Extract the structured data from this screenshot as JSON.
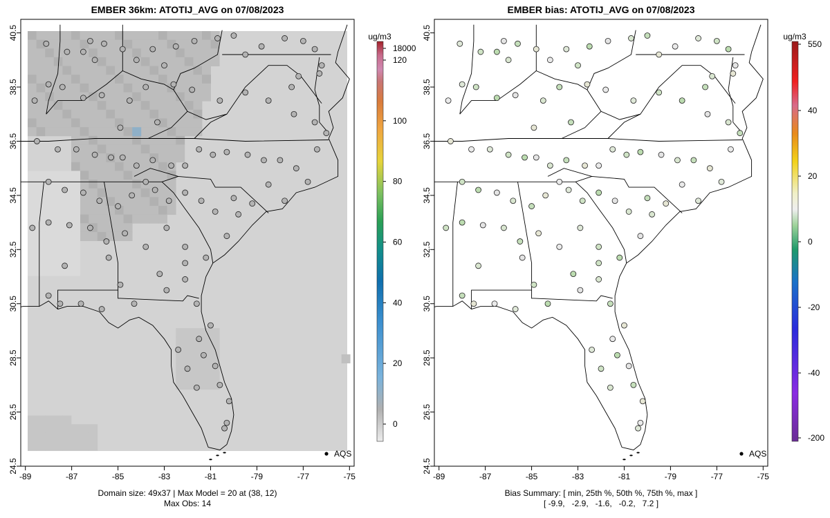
{
  "chart_data": [
    {
      "type": "heatmap",
      "title": "EMBER 36km: ATOTIJ_AVG on 07/08/2023",
      "x_ticks": [
        "-89",
        "-87",
        "-85",
        "-83",
        "-81",
        "-79",
        "-77",
        "-75"
      ],
      "y_ticks": [
        "24.5",
        "26.5",
        "28.5",
        "30.5",
        "32.5",
        "34.5",
        "36.5",
        "38.5",
        "40.5"
      ],
      "xlim": [
        -89.2,
        -74.8
      ],
      "ylim": [
        24.5,
        41.0
      ],
      "colorbar": {
        "unit": "ug/m3",
        "tick_labels": [
          "0",
          "20",
          "40",
          "60",
          "80",
          "100",
          "120",
          "18000"
        ],
        "tick_values": [
          0,
          20,
          40,
          60,
          80,
          100,
          120,
          18000
        ]
      },
      "legend": {
        "label": "AQS",
        "position": "bottom-right"
      },
      "footer": [
        "Domain size: 49x37 | Max Model = 20 at (38, 12)",
        "Max Obs: 14"
      ],
      "stations": [
        [
          -88.1,
          40.1
        ],
        [
          -87.2,
          39.8
        ],
        [
          -86.5,
          39.8
        ],
        [
          -86.2,
          40.2
        ],
        [
          -86.0,
          39.5
        ],
        [
          -85.6,
          40.1
        ],
        [
          -84.8,
          39.9
        ],
        [
          -84.2,
          39.5
        ],
        [
          -83.5,
          39.9
        ],
        [
          -83.0,
          39.3
        ],
        [
          -82.5,
          40.0
        ],
        [
          -81.7,
          40.2
        ],
        [
          -80.7,
          40.3
        ],
        [
          -80.0,
          40.4
        ],
        [
          -79.5,
          39.7
        ],
        [
          -78.8,
          40.0
        ],
        [
          -77.8,
          40.3
        ],
        [
          -77.0,
          40.2
        ],
        [
          -76.5,
          39.9
        ],
        [
          -76.2,
          39.3
        ],
        [
          -77.2,
          38.9
        ],
        [
          -77.5,
          38.5
        ],
        [
          -76.3,
          39.0
        ],
        [
          -88.6,
          38.0
        ],
        [
          -88.0,
          38.6
        ],
        [
          -87.4,
          38.5
        ],
        [
          -86.5,
          38.1
        ],
        [
          -85.7,
          38.2
        ],
        [
          -84.5,
          38.0
        ],
        [
          -83.8,
          38.5
        ],
        [
          -82.6,
          38.6
        ],
        [
          -81.8,
          38.4
        ],
        [
          -80.6,
          38.0
        ],
        [
          -79.5,
          38.3
        ],
        [
          -78.5,
          38.0
        ],
        [
          -77.4,
          37.5
        ],
        [
          -76.5,
          37.2
        ],
        [
          -76.0,
          36.8
        ],
        [
          -88.5,
          36.5
        ],
        [
          -87.6,
          36.2
        ],
        [
          -86.8,
          36.2
        ],
        [
          -86.0,
          36.0
        ],
        [
          -85.3,
          35.9
        ],
        [
          -84.8,
          35.9
        ],
        [
          -84.2,
          35.6
        ],
        [
          -83.5,
          35.8
        ],
        [
          -82.7,
          35.6
        ],
        [
          -82.1,
          35.6
        ],
        [
          -81.5,
          36.2
        ],
        [
          -80.9,
          36.0
        ],
        [
          -80.3,
          36.1
        ],
        [
          -79.4,
          36.0
        ],
        [
          -78.7,
          35.8
        ],
        [
          -78.0,
          35.8
        ],
        [
          -77.3,
          35.5
        ],
        [
          -76.4,
          36.2
        ],
        [
          -76.8,
          35.0
        ],
        [
          -88.0,
          35.0
        ],
        [
          -87.3,
          34.7
        ],
        [
          -86.5,
          34.6
        ],
        [
          -85.8,
          34.3
        ],
        [
          -85.0,
          34.1
        ],
        [
          -84.4,
          34.5
        ],
        [
          -83.8,
          35.0
        ],
        [
          -83.4,
          34.7
        ],
        [
          -82.8,
          34.3
        ],
        [
          -82.1,
          34.6
        ],
        [
          -81.4,
          34.3
        ],
        [
          -80.8,
          33.9
        ],
        [
          -80.0,
          34.4
        ],
        [
          -79.2,
          34.2
        ],
        [
          -78.5,
          34.9
        ],
        [
          -77.8,
          34.3
        ],
        [
          -88.7,
          33.3
        ],
        [
          -88.0,
          33.5
        ],
        [
          -87.1,
          33.4
        ],
        [
          -86.2,
          33.3
        ],
        [
          -85.5,
          32.8
        ],
        [
          -84.7,
          33.1
        ],
        [
          -83.8,
          32.6
        ],
        [
          -82.9,
          33.3
        ],
        [
          -82.1,
          32.6
        ],
        [
          -81.2,
          32.2
        ],
        [
          -80.3,
          33.0
        ],
        [
          -79.8,
          33.8
        ],
        [
          -88.0,
          30.8
        ],
        [
          -87.5,
          30.5
        ],
        [
          -86.6,
          30.5
        ],
        [
          -85.7,
          30.3
        ],
        [
          -84.9,
          31.2
        ],
        [
          -84.3,
          30.5
        ],
        [
          -82.9,
          31.0
        ],
        [
          -82.1,
          31.4
        ],
        [
          -81.6,
          30.5
        ],
        [
          -81.0,
          29.7
        ],
        [
          -81.5,
          29.2
        ],
        [
          -82.4,
          28.8
        ],
        [
          -82.0,
          28.1
        ],
        [
          -81.3,
          28.6
        ],
        [
          -80.8,
          28.2
        ],
        [
          -81.6,
          27.4
        ],
        [
          -80.6,
          27.5
        ],
        [
          -80.2,
          26.9
        ],
        [
          -80.3,
          26.1
        ],
        [
          -80.4,
          25.9
        ],
        [
          -82.1,
          32.0
        ],
        [
          -83.2,
          31.6
        ],
        [
          -85.4,
          32.2
        ],
        [
          -87.3,
          31.9
        ],
        [
          -83.3,
          37.2
        ],
        [
          -84.9,
          37.0
        ]
      ]
    },
    {
      "type": "heatmap",
      "title": "EMBER bias: ATOTIJ_AVG on 07/08/2023",
      "x_ticks": [
        "-89",
        "-87",
        "-85",
        "-83",
        "-81",
        "-79",
        "-77",
        "-75"
      ],
      "y_ticks": [
        "24.5",
        "26.5",
        "28.5",
        "30.5",
        "32.5",
        "34.5",
        "36.5",
        "38.5",
        "40.5"
      ],
      "xlim": [
        -89.2,
        -74.8
      ],
      "ylim": [
        24.5,
        41.0
      ],
      "colorbar": {
        "unit": "ug/m3",
        "tick_labels": [
          "-200",
          "-40",
          "-20",
          "0",
          "20",
          "40",
          "550"
        ],
        "tick_values": [
          -200,
          -40,
          -20,
          0,
          20,
          40,
          550
        ]
      },
      "legend": {
        "label": "AQS",
        "position": "bottom-right"
      },
      "bias_summary": {
        "min": -9.9,
        "p25": -2.9,
        "p50": -1.6,
        "p75": -0.2,
        "max": 7.2
      },
      "footer": [
        "Bias Summary: [ min, 25th %, 50th %, 75th %, max ]",
        "[ -9.9,   -2.9,   -1.6,   -0.2,   7.2 ]"
      ]
    }
  ]
}
